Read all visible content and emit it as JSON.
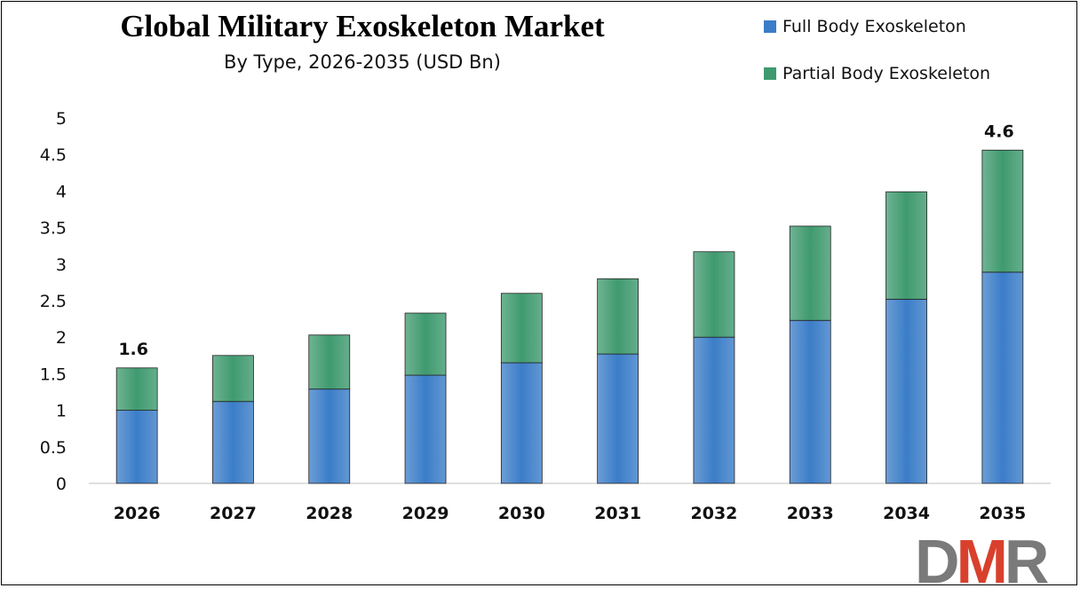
{
  "chart_data": {
    "type": "bar",
    "stacked": true,
    "title": "Global Military Exoskeleton Market",
    "subtitle": "By Type, 2026-2035 (USD Bn)",
    "categories": [
      "2026",
      "2027",
      "2028",
      "2029",
      "2030",
      "2031",
      "2032",
      "2033",
      "2034",
      "2035"
    ],
    "series": [
      {
        "name": "Full Body Exoskeleton",
        "color": "#3b7dc8",
        "values": [
          1.0,
          1.12,
          1.29,
          1.48,
          1.65,
          1.77,
          2.0,
          2.23,
          2.52,
          2.89
        ]
      },
      {
        "name": "Partial Body Exoskeleton",
        "color": "#3f9a6f",
        "values": [
          0.58,
          0.63,
          0.74,
          0.85,
          0.95,
          1.03,
          1.17,
          1.29,
          1.47,
          1.67
        ]
      }
    ],
    "data_labels": [
      {
        "category": "2026",
        "text": "1.6"
      },
      {
        "category": "2035",
        "text": "4.6"
      }
    ],
    "ylim": [
      0,
      5
    ],
    "yticks": [
      "0",
      "0.5",
      "1",
      "1.5",
      "2",
      "2.5",
      "3",
      "3.5",
      "4",
      "4.5",
      "5"
    ],
    "grid": false,
    "legend": "top-right",
    "xlabel": "",
    "ylabel": ""
  },
  "logo": {
    "text_d": "D",
    "text_m": "M",
    "text_r": "R"
  }
}
